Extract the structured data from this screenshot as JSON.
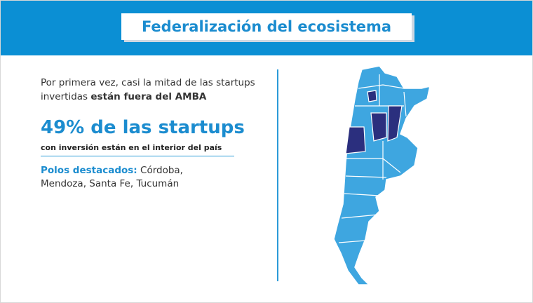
{
  "header": {
    "title": "Federalización del ecosistema"
  },
  "intro": {
    "line1": "Por primera vez, casi la mitad de las startups",
    "line2": "invertidas",
    "bold": "están fuera del AMBA"
  },
  "highlight": {
    "headline": "49% de las startups",
    "subline": "con inversión están en el interior del país"
  },
  "polos": {
    "label": "Polos destacados:",
    "line1": "Córdoba,",
    "line2": "Mendoza, Santa Fe, Tucumán"
  }
}
